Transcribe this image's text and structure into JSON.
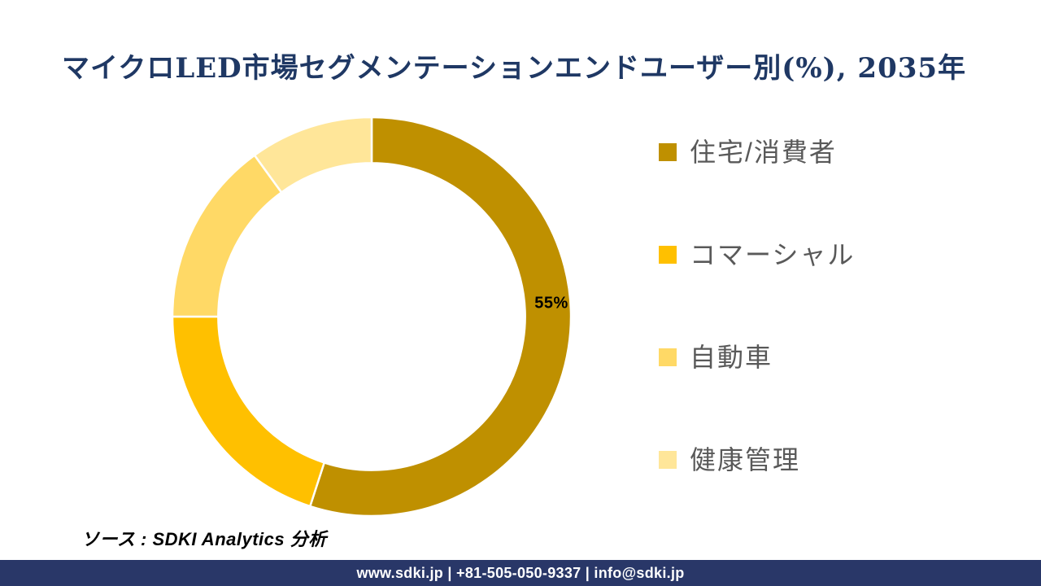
{
  "page": {
    "title": "マイクロLED市場セグメンテーションエンドユーザー別(%), 2035年",
    "source_note": "ソース : SDKI Analytics 分析",
    "footer_text": "www.sdki.jp | +81-505-050-9337 | info@sdki.jp"
  },
  "colors": {
    "background": "#FFFFFF",
    "title": "#1F3864",
    "legend_text": "#595959",
    "data_label": "#000000",
    "slice_border": "#FFFFFF",
    "footer_bg": "#293768",
    "footer_text": "#FFFFFF"
  },
  "chart_data": {
    "type": "pie",
    "subtype": "donut",
    "title": "マイクロLED市場セグメンテーションエンドユーザー別(%), 2035年",
    "unit": "%",
    "start_angle_deg": 0,
    "direction": "clockwise",
    "hole_ratio": 0.77,
    "legend_position": "right",
    "segments": [
      {
        "label": "住宅/消費者",
        "value": 55,
        "color": "#BF9000",
        "data_label": "55%"
      },
      {
        "label": "コマーシャル",
        "value": 20,
        "color": "#FFC000",
        "data_label": ""
      },
      {
        "label": "自動車",
        "value": 15,
        "color": "#FFD966",
        "data_label": ""
      },
      {
        "label": "健康管理",
        "value": 10,
        "color": "#FFE699",
        "data_label": ""
      }
    ]
  }
}
